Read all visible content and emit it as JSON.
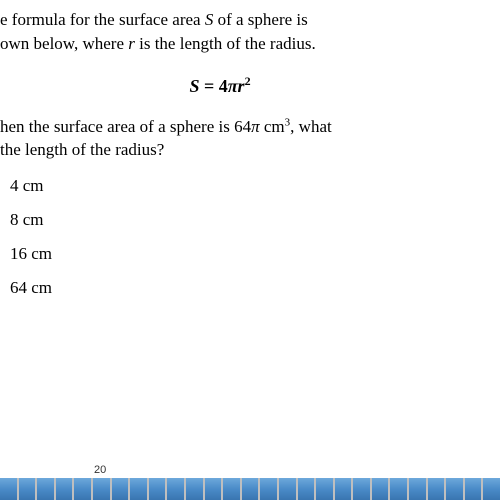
{
  "intro": {
    "line1_prefix": "e formula for the surface area ",
    "line1_var": "S",
    "line1_mid": " of a sphere is",
    "line2_prefix": "own below, where ",
    "line2_var": "r",
    "line2_suffix": " is the length of the radius."
  },
  "formula": {
    "lhs": "S",
    "eq": " = ",
    "coef": "4",
    "pi": "π",
    "var": "r",
    "exp": "2"
  },
  "question": {
    "line1_prefix": "hen the surface area of a sphere is 64",
    "line1_pi": "π",
    "line1_unit": " cm",
    "line1_exp": "3",
    "line1_suffix": ", what",
    "line2": "the length of the radius?"
  },
  "options": [
    "4 cm",
    "8 cm",
    "16 cm",
    "64 cm"
  ],
  "page_number": "20",
  "ticks_count": 27,
  "colors": {
    "text": "#000000",
    "background": "#ffffff",
    "bar_top": "#6da8db",
    "bar_bottom": "#3975b0",
    "tick_border": "#bfbfbf"
  }
}
